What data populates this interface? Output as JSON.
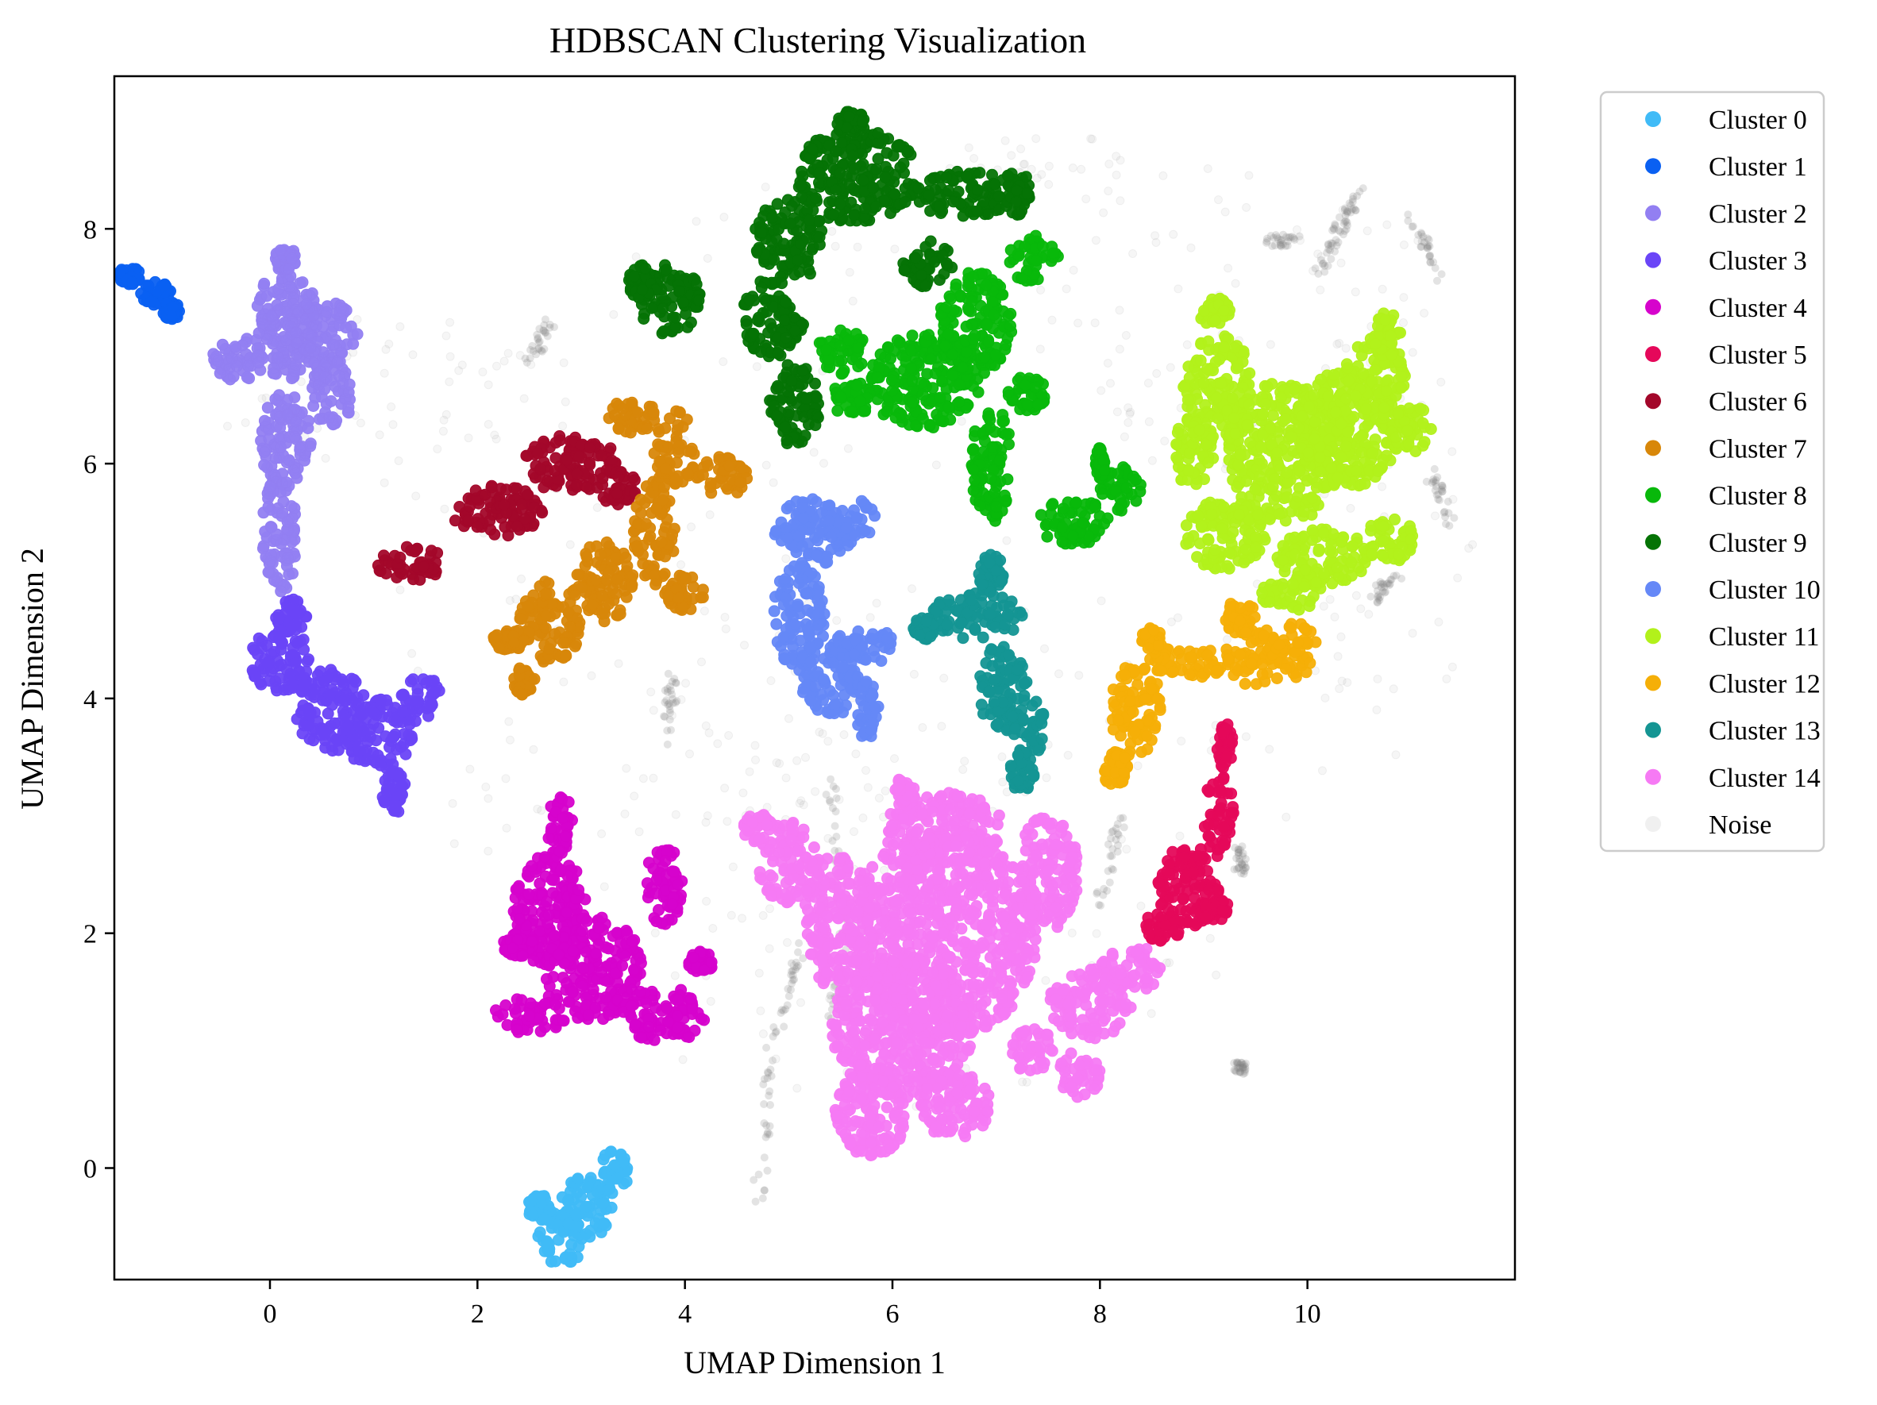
{
  "chart_data": {
    "type": "scatter",
    "title": "HDBSCAN Clustering Visualization",
    "xlabel": "UMAP Dimension 1",
    "ylabel": "UMAP Dimension 2",
    "xlim": [
      -1.5,
      12.0
    ],
    "ylim": [
      -0.95,
      9.3
    ],
    "xticks": [
      0,
      2,
      4,
      6,
      8,
      10
    ],
    "yticks": [
      0,
      2,
      4,
      6,
      8
    ],
    "xtick_labels": [
      "0",
      "2",
      "4",
      "6",
      "8",
      "10"
    ],
    "ytick_labels": [
      "0",
      "2",
      "4",
      "6",
      "8"
    ],
    "grid": false,
    "legend_position": "outside-right-top",
    "series": [
      {
        "name": "Cluster 0",
        "color": "#40bbf7",
        "blobs": [
          [
            2.8,
            -0.6,
            0.22,
            0.25
          ],
          [
            3.05,
            -0.35,
            0.25,
            0.28
          ],
          [
            3.3,
            -0.05,
            0.15,
            0.22
          ],
          [
            2.6,
            -0.35,
            0.12,
            0.12
          ]
        ]
      },
      {
        "name": "Cluster 1",
        "color": "#0a60f2",
        "blobs": [
          [
            -1.35,
            7.6,
            0.12,
            0.08
          ],
          [
            -1.1,
            7.45,
            0.15,
            0.1
          ],
          [
            -0.95,
            7.3,
            0.08,
            0.08
          ]
        ]
      },
      {
        "name": "Cluster 2",
        "color": "#927ff2",
        "blobs": [
          [
            0.15,
            7.2,
            0.3,
            0.5
          ],
          [
            -0.3,
            6.9,
            0.25,
            0.2
          ],
          [
            0.5,
            7.1,
            0.35,
            0.3
          ],
          [
            0.6,
            6.6,
            0.2,
            0.3
          ],
          [
            0.15,
            6.2,
            0.25,
            0.4
          ],
          [
            0.1,
            5.4,
            0.18,
            0.5
          ],
          [
            0.15,
            7.75,
            0.1,
            0.1
          ]
        ]
      },
      {
        "name": "Cluster 3",
        "color": "#6a45f7",
        "blobs": [
          [
            0.1,
            4.3,
            0.3,
            0.3
          ],
          [
            0.6,
            3.9,
            0.35,
            0.35
          ],
          [
            1.05,
            3.7,
            0.35,
            0.3
          ],
          [
            1.45,
            4.0,
            0.2,
            0.2
          ],
          [
            1.2,
            3.2,
            0.12,
            0.2
          ],
          [
            0.2,
            4.7,
            0.15,
            0.15
          ]
        ]
      },
      {
        "name": "Cluster 4",
        "color": "#d603cc",
        "blobs": [
          [
            2.7,
            2.2,
            0.35,
            0.5
          ],
          [
            3.1,
            1.7,
            0.5,
            0.45
          ],
          [
            2.5,
            1.3,
            0.35,
            0.15
          ],
          [
            3.8,
            1.3,
            0.4,
            0.25
          ],
          [
            3.8,
            2.4,
            0.18,
            0.35
          ],
          [
            2.8,
            2.9,
            0.12,
            0.3
          ],
          [
            4.15,
            1.75,
            0.12,
            0.1
          ],
          [
            2.4,
            1.9,
            0.15,
            0.1
          ]
        ]
      },
      {
        "name": "Cluster 5",
        "color": "#e5085a",
        "blobs": [
          [
            8.85,
            2.4,
            0.3,
            0.35
          ],
          [
            9.15,
            3.0,
            0.15,
            0.35
          ],
          [
            9.2,
            3.6,
            0.08,
            0.2
          ],
          [
            8.6,
            2.05,
            0.2,
            0.12
          ],
          [
            9.1,
            2.2,
            0.15,
            0.1
          ]
        ]
      },
      {
        "name": "Cluster 6",
        "color": "#a3072a",
        "blobs": [
          [
            1.35,
            5.15,
            0.35,
            0.15
          ],
          [
            2.2,
            5.6,
            0.45,
            0.22
          ],
          [
            2.9,
            6.0,
            0.45,
            0.25
          ],
          [
            3.35,
            5.8,
            0.2,
            0.15
          ]
        ]
      },
      {
        "name": "Cluster 7",
        "color": "#d88709",
        "blobs": [
          [
            2.7,
            4.65,
            0.3,
            0.35
          ],
          [
            3.2,
            5.0,
            0.3,
            0.35
          ],
          [
            3.7,
            5.4,
            0.2,
            0.45
          ],
          [
            3.9,
            6.1,
            0.2,
            0.35
          ],
          [
            3.5,
            6.4,
            0.25,
            0.15
          ],
          [
            4.35,
            5.9,
            0.25,
            0.2
          ],
          [
            2.3,
            4.5,
            0.15,
            0.1
          ],
          [
            2.45,
            4.15,
            0.1,
            0.12
          ],
          [
            4.0,
            4.9,
            0.2,
            0.15
          ]
        ]
      },
      {
        "name": "Cluster 8",
        "color": "#08b80b",
        "blobs": [
          [
            6.3,
            6.7,
            0.55,
            0.4
          ],
          [
            6.8,
            7.2,
            0.35,
            0.45
          ],
          [
            7.35,
            7.75,
            0.25,
            0.2
          ],
          [
            5.5,
            6.95,
            0.25,
            0.2
          ],
          [
            6.95,
            6.0,
            0.2,
            0.5
          ],
          [
            7.3,
            6.6,
            0.2,
            0.15
          ],
          [
            7.75,
            5.5,
            0.35,
            0.2
          ],
          [
            8.2,
            5.8,
            0.2,
            0.2
          ],
          [
            8.0,
            6.0,
            0.05,
            0.15
          ],
          [
            5.6,
            6.55,
            0.2,
            0.15
          ]
        ]
      },
      {
        "name": "Cluster 9",
        "color": "#057305",
        "blobs": [
          [
            5.65,
            8.45,
            0.6,
            0.4
          ],
          [
            5.0,
            7.9,
            0.35,
            0.35
          ],
          [
            4.85,
            7.25,
            0.3,
            0.35
          ],
          [
            5.05,
            6.5,
            0.25,
            0.35
          ],
          [
            6.7,
            8.3,
            0.5,
            0.2
          ],
          [
            6.35,
            7.7,
            0.25,
            0.2
          ],
          [
            3.85,
            7.4,
            0.3,
            0.3
          ],
          [
            3.6,
            7.55,
            0.15,
            0.15
          ],
          [
            5.6,
            8.9,
            0.15,
            0.1
          ],
          [
            7.2,
            8.3,
            0.15,
            0.2
          ]
        ]
      },
      {
        "name": "Cluster 10",
        "color": "#6588f7",
        "blobs": [
          [
            5.2,
            5.4,
            0.35,
            0.3
          ],
          [
            5.6,
            5.5,
            0.25,
            0.2
          ],
          [
            5.1,
            4.7,
            0.25,
            0.45
          ],
          [
            5.4,
            4.2,
            0.3,
            0.35
          ],
          [
            5.75,
            4.45,
            0.3,
            0.15
          ],
          [
            5.75,
            3.9,
            0.12,
            0.25
          ]
        ]
      },
      {
        "name": "Cluster 11",
        "color": "#b2f11b",
        "blobs": [
          [
            9.8,
            6.1,
            0.6,
            0.6
          ],
          [
            10.4,
            6.3,
            0.5,
            0.5
          ],
          [
            9.15,
            6.6,
            0.35,
            0.5
          ],
          [
            10.15,
            5.2,
            0.45,
            0.25
          ],
          [
            9.2,
            5.4,
            0.4,
            0.3
          ],
          [
            10.65,
            6.75,
            0.3,
            0.3
          ],
          [
            10.8,
            5.35,
            0.25,
            0.2
          ],
          [
            8.9,
            6.1,
            0.2,
            0.3
          ],
          [
            10.75,
            7.1,
            0.15,
            0.2
          ],
          [
            9.1,
            7.3,
            0.15,
            0.12
          ],
          [
            11.0,
            6.3,
            0.2,
            0.2
          ],
          [
            9.85,
            4.9,
            0.3,
            0.15
          ]
        ]
      },
      {
        "name": "Cluster 12",
        "color": "#f5af07",
        "blobs": [
          [
            8.35,
            3.9,
            0.25,
            0.4
          ],
          [
            8.8,
            4.3,
            0.4,
            0.15
          ],
          [
            9.5,
            4.35,
            0.3,
            0.25
          ],
          [
            9.9,
            4.4,
            0.2,
            0.25
          ],
          [
            8.15,
            3.4,
            0.12,
            0.15
          ],
          [
            9.35,
            4.7,
            0.15,
            0.15
          ],
          [
            8.5,
            4.5,
            0.1,
            0.1
          ]
        ]
      },
      {
        "name": "Cluster 13",
        "color": "#149593",
        "blobs": [
          [
            6.8,
            4.7,
            0.45,
            0.2
          ],
          [
            6.95,
            5.05,
            0.12,
            0.2
          ],
          [
            7.05,
            4.1,
            0.25,
            0.35
          ],
          [
            7.3,
            3.75,
            0.2,
            0.25
          ],
          [
            7.25,
            3.4,
            0.12,
            0.2
          ],
          [
            6.3,
            4.6,
            0.1,
            0.1
          ]
        ]
      },
      {
        "name": "Cluster 14",
        "color": "#f67af4",
        "blobs": [
          [
            6.5,
            2.0,
            0.9,
            0.9
          ],
          [
            6.1,
            1.2,
            0.7,
            0.6
          ],
          [
            5.5,
            2.1,
            0.35,
            0.6
          ],
          [
            5.0,
            2.6,
            0.3,
            0.35
          ],
          [
            6.5,
            2.9,
            0.6,
            0.3
          ],
          [
            7.5,
            2.5,
            0.3,
            0.5
          ],
          [
            5.8,
            0.5,
            0.35,
            0.4
          ],
          [
            6.6,
            0.55,
            0.35,
            0.3
          ],
          [
            7.9,
            1.4,
            0.4,
            0.3
          ],
          [
            8.3,
            1.7,
            0.3,
            0.2
          ],
          [
            7.35,
            1.0,
            0.2,
            0.2
          ],
          [
            4.7,
            2.9,
            0.15,
            0.12
          ],
          [
            6.1,
            3.2,
            0.12,
            0.12
          ],
          [
            7.8,
            0.8,
            0.2,
            0.2
          ]
        ]
      },
      {
        "name": "Noise",
        "color": "#808080",
        "blobs": [
          [
            6.0,
            4.5,
            4.8,
            4.0
          ],
          [
            9.5,
            7.2,
            2.0,
            1.4
          ],
          [
            10.8,
            5.5,
            0.8,
            2.0
          ],
          [
            4.8,
            3.0,
            1.3,
            2.0
          ],
          [
            7.5,
            8.5,
            1.0,
            0.3
          ],
          [
            1.0,
            6.5,
            1.5,
            1.0
          ]
        ],
        "alpha": 0.07
      }
    ],
    "denser_noise_strands": [
      [
        [
          4.7,
          -0.3
        ],
        [
          4.85,
          1.1
        ],
        [
          5.15,
          1.9
        ]
      ],
      [
        [
          5.4,
          3.3
        ],
        [
          5.55,
          2.2
        ],
        [
          5.4,
          1.2
        ]
      ],
      [
        [
          10.1,
          7.6
        ],
        [
          10.3,
          8.0
        ],
        [
          10.5,
          8.3
        ]
      ],
      [
        [
          11.0,
          8.1
        ],
        [
          11.3,
          7.6
        ]
      ],
      [
        [
          11.2,
          5.9
        ],
        [
          11.4,
          5.5
        ]
      ],
      [
        [
          10.6,
          4.8
        ],
        [
          10.9,
          5.1
        ]
      ],
      [
        [
          8.0,
          2.2
        ],
        [
          8.2,
          3.0
        ]
      ],
      [
        [
          9.6,
          7.9
        ],
        [
          9.9,
          7.9
        ]
      ],
      [
        [
          2.5,
          6.9
        ],
        [
          2.7,
          7.2
        ]
      ],
      [
        [
          3.8,
          3.6
        ],
        [
          3.9,
          4.2
        ]
      ],
      [
        [
          9.35,
          2.7
        ],
        [
          9.35,
          2.5
        ]
      ],
      [
        [
          9.35,
          0.85
        ],
        [
          9.35,
          0.85
        ]
      ]
    ]
  }
}
